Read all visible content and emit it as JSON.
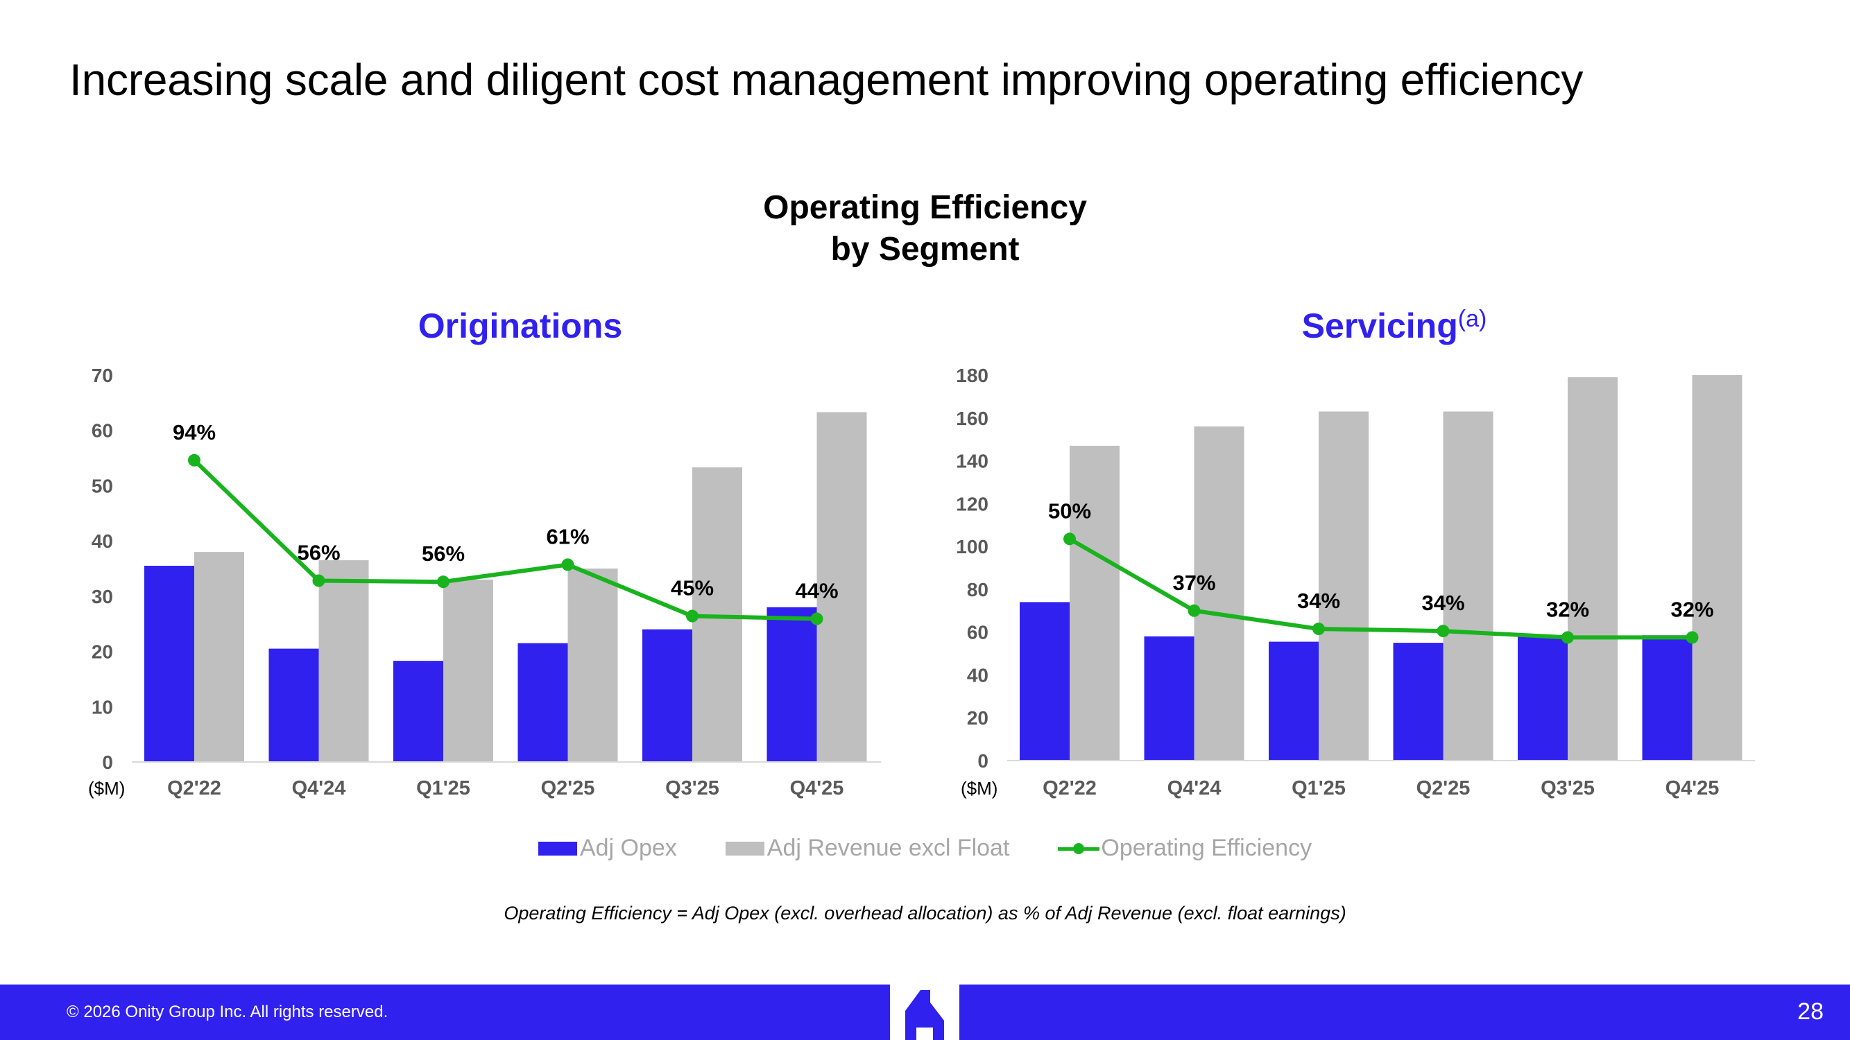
{
  "page": {
    "title": "Increasing scale and diligent cost management improving operating efficiency",
    "chart_heading_line1": "Operating Efficiency",
    "chart_heading_line2": "by Segment",
    "footnote": "Operating Efficiency = Adj Opex (excl. overhead allocation) as % of Adj Revenue (excl. float earnings)"
  },
  "legend": {
    "opex": "Adj Opex",
    "revenue": "Adj Revenue excl Float",
    "efficiency": "Operating Efficiency"
  },
  "footer": {
    "copyright": "© 2026 Onity Group Inc. All rights reserved.",
    "page_number": "28"
  },
  "colors": {
    "opex": "#3021ef",
    "revenue": "#bfbfbf",
    "efficiency": "#19b31e",
    "subtitle": "#3021ef",
    "axis_text": "#595959"
  },
  "chart_data": [
    {
      "type": "bar",
      "title": "Originations",
      "title_superscript": "",
      "unit_label": "($M)",
      "categories": [
        "Q2'22",
        "Q4'24",
        "Q1'25",
        "Q2'25",
        "Q3'25",
        "Q4'25"
      ],
      "ylim": [
        0,
        70
      ],
      "yticks": [
        0,
        10,
        20,
        30,
        40,
        50,
        60,
        70
      ],
      "series": [
        {
          "name": "Adj Opex",
          "type": "bar",
          "values": [
            35.5,
            20.5,
            18.3,
            21.5,
            24,
            28
          ]
        },
        {
          "name": "Adj Revenue excl Float",
          "type": "bar",
          "values": [
            38,
            36.5,
            33,
            35,
            53.3,
            63.3
          ]
        },
        {
          "name": "Operating Efficiency",
          "type": "line",
          "values": [
            54.6,
            32.8,
            32.6,
            35.7,
            26.4,
            25.9
          ],
          "labels": [
            "94%",
            "56%",
            "56%",
            "61%",
            "45%",
            "44%"
          ]
        }
      ],
      "grid": false
    },
    {
      "type": "bar",
      "title": "Servicing",
      "title_superscript": "(a)",
      "unit_label": "($M)",
      "categories": [
        "Q2'22",
        "Q4'24",
        "Q1'25",
        "Q2'25",
        "Q3'25",
        "Q4'25"
      ],
      "ylim": [
        0,
        180
      ],
      "yticks": [
        0,
        20,
        40,
        60,
        80,
        100,
        120,
        140,
        160,
        180
      ],
      "series": [
        {
          "name": "Adj Opex",
          "type": "bar",
          "values": [
            74,
            58,
            55.5,
            55,
            58,
            58.5
          ]
        },
        {
          "name": "Adj Revenue excl Float",
          "type": "bar",
          "values": [
            147,
            156,
            163,
            163,
            179,
            180
          ]
        },
        {
          "name": "Operating Efficiency",
          "type": "line",
          "values": [
            103.5,
            70,
            61.5,
            60.5,
            57.5,
            57.5
          ],
          "labels": [
            "50%",
            "37%",
            "34%",
            "34%",
            "32%",
            "32%"
          ]
        }
      ],
      "grid": false
    }
  ]
}
